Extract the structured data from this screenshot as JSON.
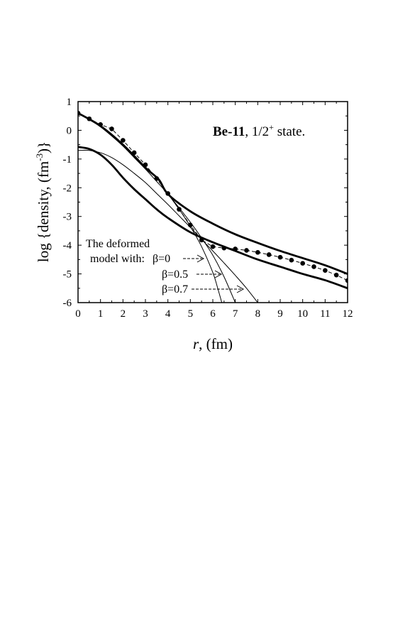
{
  "chart_data": {
    "type": "line",
    "title": {
      "bold": "Be-11",
      "rest_a": ",  1/2",
      "sup": "+",
      "rest_b": " state."
    },
    "xlabel": {
      "italic": "r",
      "rest": ",   (fm)"
    },
    "ylabel": {
      "a": "log {density, (fm",
      "sup": "-3",
      "b": ")}"
    },
    "xlim": [
      0,
      12
    ],
    "ylim": [
      -6,
      1
    ],
    "xticks": [
      "0",
      "1",
      "2",
      "3",
      "4",
      "5",
      "6",
      "7",
      "8",
      "9",
      "10",
      "11",
      "12"
    ],
    "yticks": [
      "1",
      "0",
      "-1",
      "-2",
      "-3",
      "-4",
      "-5",
      "-6"
    ],
    "annotation": {
      "line1": "The deformed",
      "line2": "model  with:",
      "b0": "β=0",
      "b05": "β=0.5",
      "b07": "β=0.7"
    },
    "series": [
      {
        "style": "dots-dashed",
        "x": [
          0,
          0.5,
          1,
          1.5,
          2,
          2.5,
          3,
          3.5,
          4,
          4.5,
          5,
          5.5,
          6,
          6.5,
          7,
          7.5,
          8,
          8.5,
          9,
          9.5,
          10,
          10.5,
          11,
          11.5,
          12
        ],
        "y": [
          0.6,
          0.4,
          0.2,
          0.05,
          -0.35,
          -0.78,
          -1.2,
          -1.68,
          -2.2,
          -2.75,
          -3.3,
          -3.82,
          -4.05,
          -4.1,
          -4.13,
          -4.18,
          -4.25,
          -4.33,
          -4.42,
          -4.52,
          -4.63,
          -4.75,
          -4.88,
          -5.04,
          -5.23
        ]
      },
      {
        "style": "thick",
        "x": [
          0,
          1,
          2,
          3,
          3.6,
          4,
          5,
          6,
          7,
          8,
          9,
          10,
          11,
          12
        ],
        "y": [
          0.6,
          0.15,
          -0.5,
          -1.3,
          -1.72,
          -2.22,
          -2.82,
          -3.25,
          -3.62,
          -3.92,
          -4.2,
          -4.45,
          -4.7,
          -5.0
        ]
      },
      {
        "style": "thick",
        "x": [
          0,
          0.5,
          1,
          1.5,
          2,
          2.5,
          3,
          3.5,
          4,
          5,
          6,
          7,
          8,
          9,
          10,
          11,
          12
        ],
        "y": [
          -0.58,
          -0.65,
          -0.85,
          -1.2,
          -1.65,
          -2.05,
          -2.4,
          -2.75,
          -3.05,
          -3.55,
          -3.9,
          -4.2,
          -4.5,
          -4.75,
          -5.0,
          -5.22,
          -5.5
        ]
      },
      {
        "style": "thin",
        "name": "β=0",
        "x": [
          0,
          0.5,
          1,
          1.5,
          2,
          2.5,
          3,
          3.5,
          4,
          4.5,
          5,
          5.5,
          6,
          6.2,
          6.4
        ],
        "y": [
          0.6,
          0.38,
          0.12,
          -0.2,
          -0.55,
          -0.95,
          -1.35,
          -1.78,
          -2.22,
          -2.75,
          -3.35,
          -4.05,
          -4.95,
          -5.45,
          -6.0
        ]
      },
      {
        "style": "thin",
        "name": "β=0.5",
        "x": [
          4,
          4.5,
          5,
          5.5,
          6,
          6.5,
          7
        ],
        "y": [
          -2.22,
          -2.7,
          -3.2,
          -3.75,
          -4.35,
          -5.1,
          -6.0
        ]
      },
      {
        "style": "thin",
        "name": "β=0.7",
        "x": [
          0,
          0.5,
          1,
          1.5,
          2,
          2.5,
          3,
          3.5,
          4,
          4.5,
          5,
          5.5,
          6,
          6.5,
          7,
          7.5,
          8
        ],
        "y": [
          -0.7,
          -0.7,
          -0.78,
          -0.95,
          -1.2,
          -1.5,
          -1.82,
          -2.2,
          -2.58,
          -2.98,
          -3.38,
          -3.8,
          -4.2,
          -4.62,
          -5.05,
          -5.5,
          -6.0
        ]
      }
    ]
  }
}
